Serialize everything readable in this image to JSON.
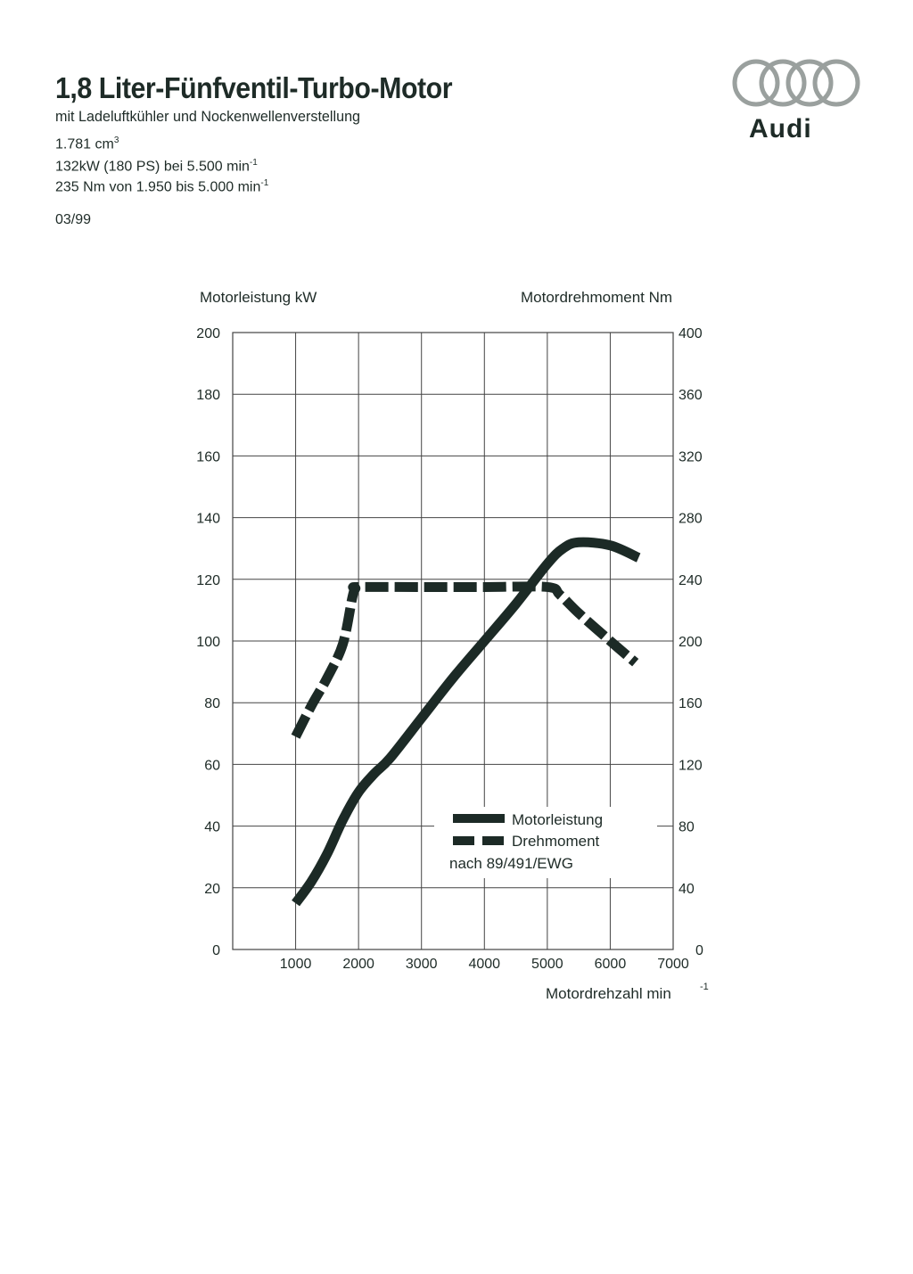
{
  "header": {
    "title": "1,8 Liter-Fünfventil-Turbo-Motor",
    "subtitle": "mit Ladeluftkühler und Nockenwellenverstellung",
    "displacement": "1.781 cm",
    "displacement_sup": "3",
    "power": "132kW (180 PS) bei 5.500 min",
    "power_sup": "-1",
    "torque": "235 Nm von 1.950 bis 5.000 min",
    "torque_sup": "-1",
    "date": "03/99"
  },
  "logo": {
    "brand": "Audi"
  },
  "chart_data": {
    "type": "line",
    "ylabel_left": "Motorleistung kW",
    "ylabel_right": "Motordrehmoment Nm",
    "xlabel": "Motordrehzahl min",
    "xlabel_sup": "-1",
    "xlim": [
      0,
      7000
    ],
    "ylim_left": [
      0,
      200
    ],
    "ylim_right": [
      0,
      400
    ],
    "grid": true,
    "x_ticks": [
      1000,
      2000,
      3000,
      4000,
      5000,
      6000,
      7000
    ],
    "y_ticks_left": [
      0,
      20,
      40,
      60,
      80,
      100,
      120,
      140,
      160,
      180,
      200
    ],
    "y_ticks_right": [
      0,
      40,
      80,
      120,
      160,
      200,
      240,
      280,
      320,
      360,
      400
    ],
    "legend_placement": "bottom-right",
    "legend": [
      "Motorleistung",
      "Drehmoment"
    ],
    "legend_note": "nach 89/491/EWG",
    "series": [
      {
        "name": "Motorleistung",
        "axis": "left",
        "style": "solid",
        "x": [
          1000,
          1250,
          1500,
          1750,
          2000,
          2250,
          2500,
          3000,
          3500,
          4000,
          4500,
          5000,
          5250,
          5500,
          6000,
          6450
        ],
        "y": [
          15,
          22,
          31,
          42,
          51,
          57,
          62,
          75,
          88,
          100,
          112,
          125,
          130,
          132,
          131,
          127
        ]
      },
      {
        "name": "Drehmoment",
        "axis": "right",
        "style": "dashed",
        "x": [
          1000,
          1250,
          1500,
          1750,
          1900,
          1950,
          2000,
          3000,
          4000,
          5000,
          5200,
          5500,
          6000,
          6400
        ],
        "y": [
          138,
          158,
          176,
          198,
          228,
          234,
          235,
          235,
          235,
          235,
          230,
          218,
          200,
          186
        ]
      }
    ]
  },
  "colors": {
    "ink": "#1c2a26",
    "grid": "#444"
  }
}
